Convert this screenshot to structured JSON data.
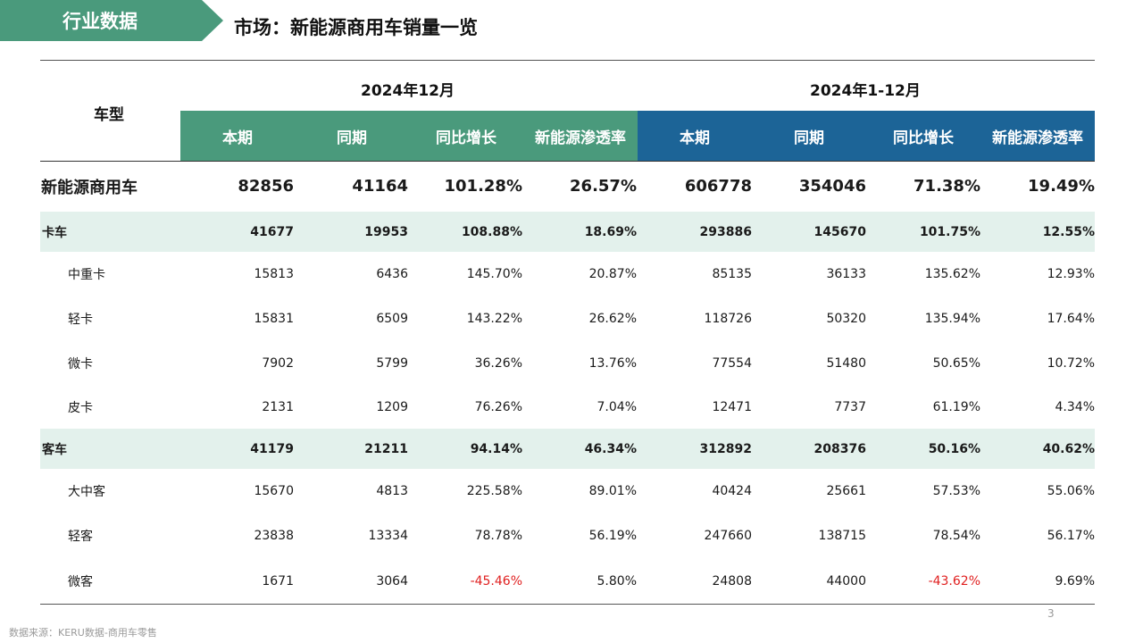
{
  "header": {
    "tag": "行业数据",
    "title": "市场：新能源商用车销量一览"
  },
  "table": {
    "type_header": "车型",
    "period_1": "2024年12月",
    "period_2": "2024年1-12月",
    "sub_headers": [
      "本期",
      "同期",
      "同比增长",
      "新能源渗透率"
    ],
    "rows": [
      {
        "label": "新能源商用车",
        "style": "total",
        "values": [
          "82856",
          "41164",
          "101.28%",
          "26.57%",
          "606778",
          "354046",
          "71.38%",
          "19.49%"
        ]
      },
      {
        "label": "卡车",
        "style": "band",
        "values": [
          "41677",
          "19953",
          "108.88%",
          "18.69%",
          "293886",
          "145670",
          "101.75%",
          "12.55%"
        ]
      },
      {
        "label": "中重卡",
        "style": "sub",
        "values": [
          "15813",
          "6436",
          "145.70%",
          "20.87%",
          "85135",
          "36133",
          "135.62%",
          "12.93%"
        ]
      },
      {
        "label": "轻卡",
        "style": "sub",
        "values": [
          "15831",
          "6509",
          "143.22%",
          "26.62%",
          "118726",
          "50320",
          "135.94%",
          "17.64%"
        ]
      },
      {
        "label": "微卡",
        "style": "sub",
        "values": [
          "7902",
          "5799",
          "36.26%",
          "13.76%",
          "77554",
          "51480",
          "50.65%",
          "10.72%"
        ]
      },
      {
        "label": "皮卡",
        "style": "sub",
        "values": [
          "2131",
          "1209",
          "76.26%",
          "7.04%",
          "12471",
          "7737",
          "61.19%",
          "4.34%"
        ]
      },
      {
        "label": "客车",
        "style": "band",
        "values": [
          "41179",
          "21211",
          "94.14%",
          "46.34%",
          "312892",
          "208376",
          "50.16%",
          "40.62%"
        ]
      },
      {
        "label": "大中客",
        "style": "sub",
        "values": [
          "15670",
          "4813",
          "225.58%",
          "89.01%",
          "40424",
          "25661",
          "57.53%",
          "55.06%"
        ]
      },
      {
        "label": "轻客",
        "style": "sub",
        "values": [
          "23838",
          "13334",
          "78.78%",
          "56.19%",
          "247660",
          "138715",
          "78.54%",
          "56.17%"
        ]
      },
      {
        "label": "微客",
        "style": "sub",
        "values": [
          "1671",
          "3064",
          "-45.46%",
          "5.80%",
          "24808",
          "44000",
          "-43.62%",
          "9.69%"
        ]
      }
    ]
  },
  "footer": {
    "source": "数据来源：KERU数据-商用车零售",
    "page_number": "3"
  },
  "colors": {
    "green": "#4a9a7c",
    "blue": "#1c6497",
    "band": "#e3f1ec",
    "negative": "#e02020"
  }
}
